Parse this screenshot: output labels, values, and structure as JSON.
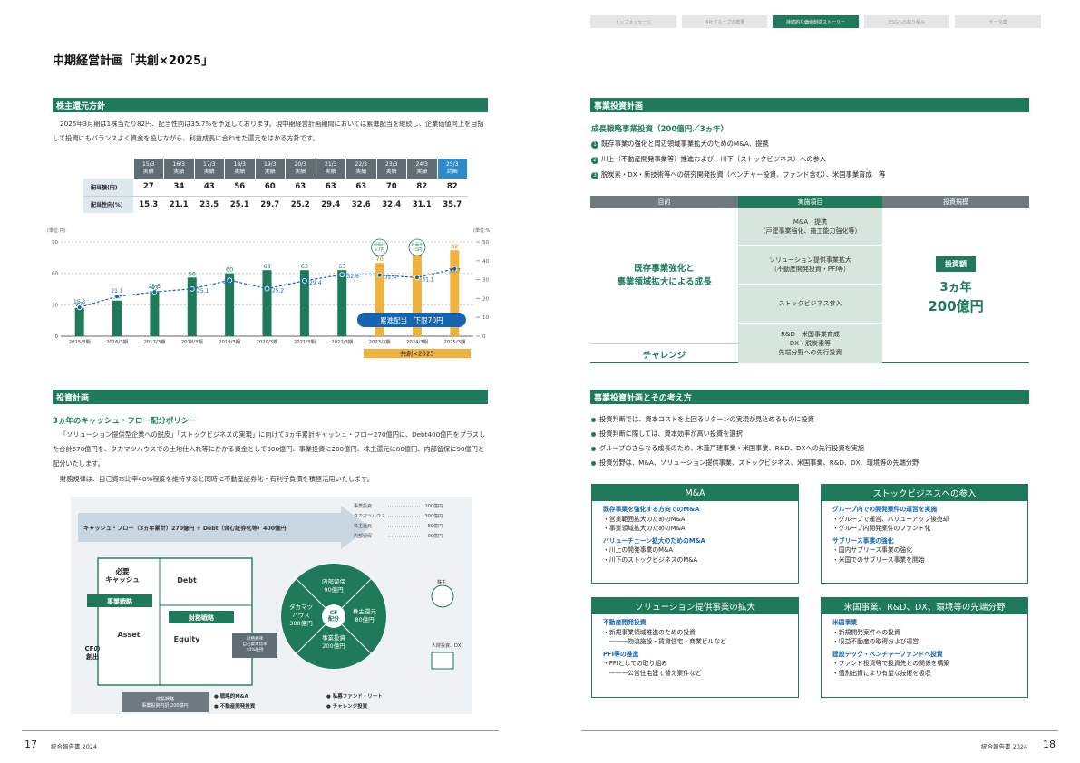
{
  "nav": [
    "トップメッセージ",
    "当社グループの概要",
    "持続的な価値創造ストーリー",
    "ESGへの取り組み",
    "データ集"
  ],
  "nav_active": 2,
  "page_title": "中期経営計画「共創×2025」",
  "left": {
    "section1_title": "株主還元方針",
    "section1_para": "2025年3月期は1株当たり82円、配当性向は35.7%を予定しております。現中期経営計画期間においては累進配当を継続し、企業価値向上を目指して投資にもバランスよく資金を投じながら、利益成長に合わせた還元をはかる方針です。",
    "table": {
      "headers": [
        [
          "15/3",
          "実績"
        ],
        [
          "16/3",
          "実績"
        ],
        [
          "17/3",
          "実績"
        ],
        [
          "18/3",
          "実績"
        ],
        [
          "19/3",
          "実績"
        ],
        [
          "20/3",
          "実績"
        ],
        [
          "21/3",
          "実績"
        ],
        [
          "22/3",
          "実績"
        ],
        [
          "23/3",
          "実績"
        ],
        [
          "24/3",
          "実績"
        ],
        [
          "25/3",
          "計画"
        ]
      ],
      "row1_label": "配当額(円)",
      "row1": [
        "27",
        "34",
        "43",
        "56",
        "60",
        "63",
        "63",
        "63",
        "70",
        "82",
        "82"
      ],
      "row2_label": "配当性向(%)",
      "row2": [
        "15.3",
        "21.1",
        "23.5",
        "25.1",
        "29.7",
        "25.2",
        "29.4",
        "32.6",
        "32.4",
        "31.1",
        "35.7"
      ]
    },
    "chart_data": {
      "type": "bar",
      "categories": [
        "2015/3期",
        "2016/3期",
        "2017/3期",
        "2018/3期",
        "2019/3期",
        "2020/3期",
        "2021/3期",
        "2022/3期",
        "2023/3期",
        "2024/3期",
        "2025/3期"
      ],
      "series": [
        {
          "values": [
            27,
            34,
            43,
            56,
            60,
            63,
            63,
            63,
            70,
            82,
            82
          ]
        },
        {
          "values": [
            15.3,
            21.1,
            23.5,
            25.1,
            29.7,
            25.2,
            29.4,
            32.6,
            32.4,
            31.1,
            35.7
          ]
        }
      ],
      "left_unit": "(単位:円)",
      "right_unit": "(単位:%)",
      "ylim_left": [
        0,
        90
      ],
      "ylim_right": [
        0,
        50
      ],
      "left_ticks": [
        "0",
        "30",
        "60",
        "90"
      ],
      "right_ticks": [
        "0",
        "10",
        "20",
        "30",
        "40",
        "50"
      ],
      "annotations": [
        {
          "text": "計画比 +7円"
        },
        {
          "text": "計画比 +5円"
        }
      ],
      "callout": "累進配当　下限70円",
      "band_label": "共創×2025",
      "colors": {
        "bar": "#1e7a58",
        "highlight_bar": "#f0b23c",
        "line": "#1565b0"
      }
    },
    "section2_title": "投資計画",
    "section2_sub": "3ヵ年のキャッシュ・フロー配分ポリシー",
    "section2_para1": "「ソリューション提供型企業への脱皮」「ストックビジネスの実現」に向けて3ヵ年累計キャッシュ・フロー270億円に、Debt400億円をプラスした合計670億円を、タカマツハウスでの土地仕入れ等にかかる資金として300億円、事業投資に200億円、株主還元に80億円、内部留保に90億円と配分いたします。",
    "section2_para2": "財務規律は、自己資本比率40%程度を維持すると同時に不動産証券化・有利子負債を積極活用いたします。",
    "diagram": {
      "legend": [
        [
          "事業投資",
          "200億円"
        ],
        [
          "タカマツハウス",
          "300億円"
        ],
        [
          "株主還元",
          "80億円"
        ],
        [
          "内部留保",
          "90億円"
        ]
      ],
      "top_text": "キャッシュ・フロー（3ヵ年累計）270億円 + Debt（含む証券化等）400億円",
      "need_cash": "必要\nキャッシュ",
      "debt": "Debt",
      "biz_strategy": "事業戦略",
      "fin_strategy": "財務戦略",
      "asset": "Asset",
      "equity": "Equity",
      "cf_creation": "CFの\n創出",
      "fin_note": "財務規律\n自己資本比率\n40%維持",
      "cf_center": "CF\n配分",
      "seg_top": "内部留保\n90億円",
      "seg_left": "タカマツ\nハウス\n300億円",
      "seg_right": "株主還元\n80億円",
      "seg_bottom": "事業投資\n200億円",
      "shareholders": "株主",
      "hr": "人財投資、DX",
      "bottom_left": "成長戦略\n事業投資内訳 200億円",
      "bottom_items": [
        "戦略的M&A",
        "不動産開発投資",
        "私募ファンド・リート",
        "チャレンジ投資"
      ]
    },
    "page_no": "17",
    "footer": "統合報告書 2024"
  },
  "right": {
    "section1_title": "事業投資計画",
    "sub": "成長戦略事業投資（200億円／3ヵ年）",
    "items": [
      {
        "n": "1",
        "text": "既存事業の強化と周辺領域事業拡大のためのM&A、提携"
      },
      {
        "n": "2",
        "text": "川上（不動産開発事業等）推進および、川下（ストックビジネス）への参入"
      },
      {
        "n": "3",
        "text": "脱炭素・DX・新技術等への研究開発投資（ベンチャー投資、ファンド含む）、米国事業育成　等"
      }
    ],
    "inv_table": {
      "headers": [
        "目的",
        "実施項目",
        "投資規模"
      ],
      "purpose1": "既存事業強化と\n事業領域拡大による成長",
      "purpose2": "チャレンジ",
      "items": [
        "M&A　提携\n（戸建事業強化、施工能力強化等）",
        "ソリューション提供事業拡大\n（不動産開発投資・PFI等）",
        "ストックビジネス参入",
        "R&D　米国事業育成\nDX・脱炭素等\n先端分野への先行投資"
      ],
      "badge": "投資額",
      "amount1": "3ヵ年",
      "amount2": "200億円"
    },
    "section2_title": "事業投資計画とその考え方",
    "bullets": [
      "投資判断では、資本コストを上回るリターンの実現が見込めるものに投資",
      "投資判断に際しては、資本効率が高い投資を選択",
      "グループのさらなる成長のため、木造戸建事業・米国事業、R&D、DXへの先行投資を実施",
      "投資分野は、M&A、ソリューション提供事業、ストックビジネス、米国事業、R&D、DX、環境等の先端分野"
    ],
    "cards": [
      {
        "title": "M&A",
        "lines": [
          {
            "t": "既存事業を強化する方向でのM&A",
            "h": true
          },
          {
            "t": "・営業範囲拡大のためのM&A"
          },
          {
            "t": "・事業領域拡大のためのM&A"
          },
          {
            "t": "バリューチェーン拡大のためのM&A",
            "h": true
          },
          {
            "t": "・川上の開発事業のM&A"
          },
          {
            "t": "・川下のストックビジネスのM&A"
          }
        ]
      },
      {
        "title": "ストックビジネスへの参入",
        "lines": [
          {
            "t": "グループ内での開発案件の運営を実施",
            "h": true
          },
          {
            "t": "・グループで運営、バリューアップ後売却"
          },
          {
            "t": "・グループ内開発案件のファンド化"
          },
          {
            "t": "サブリース事業の強化",
            "h": true
          },
          {
            "t": "・国内サブリース事業の強化"
          },
          {
            "t": "・米国でのサブリース事業を開始"
          }
        ]
      },
      {
        "title": "ソリューション提供事業の拡大",
        "lines": [
          {
            "t": "不動産開発投資",
            "h": true
          },
          {
            "t": "・新規事業領域推進のための投資"
          },
          {
            "t": "　———物流施設・賃貸住宅・商業ビルなど"
          },
          {
            "t": "PFI等の推進",
            "h": true
          },
          {
            "t": "・PFIとしての取り組み"
          },
          {
            "t": "　———公営住宅建て替え案件など"
          }
        ]
      },
      {
        "title": "米国事業、R&D、DX、環境等の先端分野",
        "lines": [
          {
            "t": "米国事業",
            "h": true
          },
          {
            "t": "・新規開発案件への投資"
          },
          {
            "t": "・収益不動産の取得および運営"
          },
          {
            "t": "建設テック・ベンチャーファンドへ投資",
            "h": true
          },
          {
            "t": "・ファンド投資等で投資先との関係を構築"
          },
          {
            "t": "・個別出資により有望な技術を吸収"
          }
        ]
      }
    ],
    "page_no": "18",
    "footer": "統合報告書 2024"
  }
}
